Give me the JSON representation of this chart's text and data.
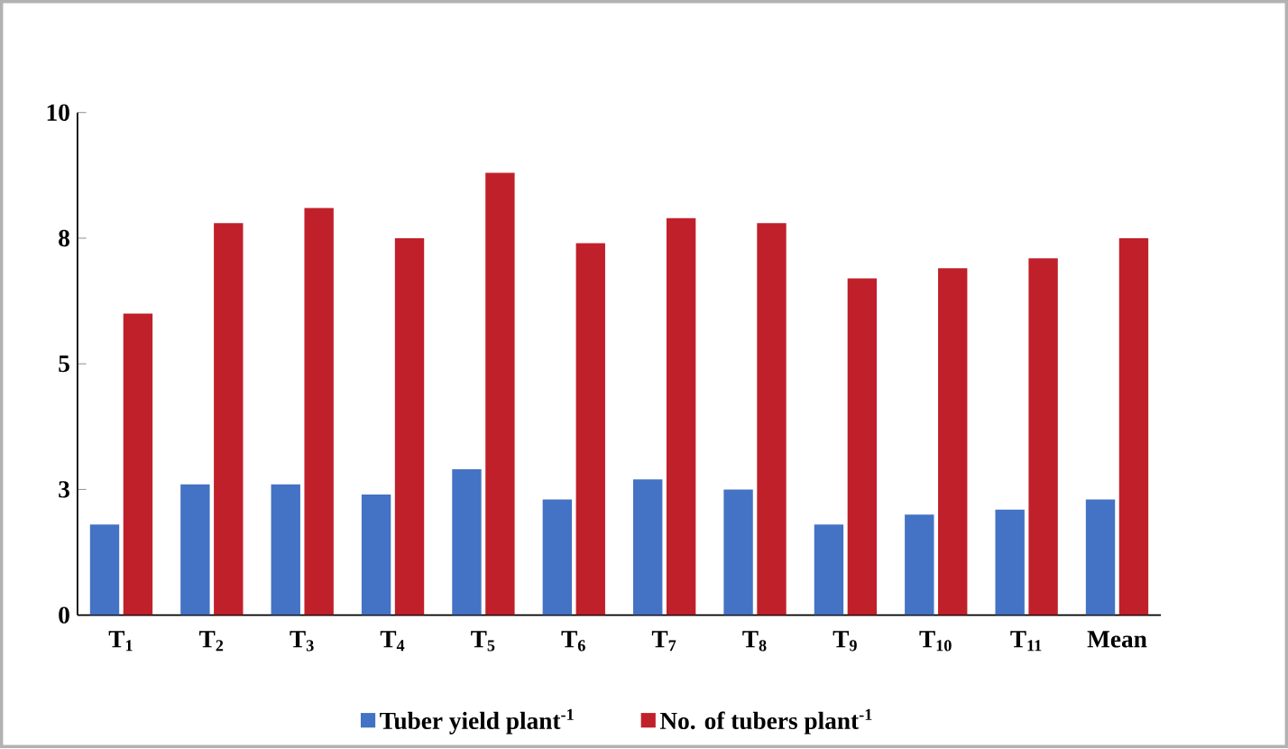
{
  "chart_data": {
    "type": "bar",
    "categories": [
      "T$_{1}$",
      "T$_{2}$",
      "T$_{3}$",
      "T$_{4}$",
      "T$_{5}$",
      "T$_{6}$",
      "T$_{7}$",
      "T$_{8}$",
      "T$_{9}$",
      "T$_{10}$",
      "T$_{11}$",
      "Mean"
    ],
    "series": [
      {
        "name": "Tuber yield plant$^{-1}$",
        "color": "#4472c4",
        "values": [
          1.8,
          2.6,
          2.6,
          2.4,
          2.9,
          2.3,
          2.7,
          2.5,
          1.8,
          2.0,
          2.1,
          2.3
        ]
      },
      {
        "name": "No. of tubers plant$^{-1}$",
        "color": "#c0202a",
        "values": [
          6.0,
          7.8,
          8.1,
          7.5,
          8.8,
          7.4,
          7.9,
          7.8,
          6.7,
          6.9,
          7.1,
          7.5
        ]
      }
    ],
    "ylim": [
      0,
      10
    ],
    "yticks": [
      0,
      {
        "value": 2.5,
        "label": "3"
      },
      5,
      {
        "value": 7.5,
        "label": "8"
      },
      10
    ],
    "grid": false,
    "legend": "bottom"
  }
}
